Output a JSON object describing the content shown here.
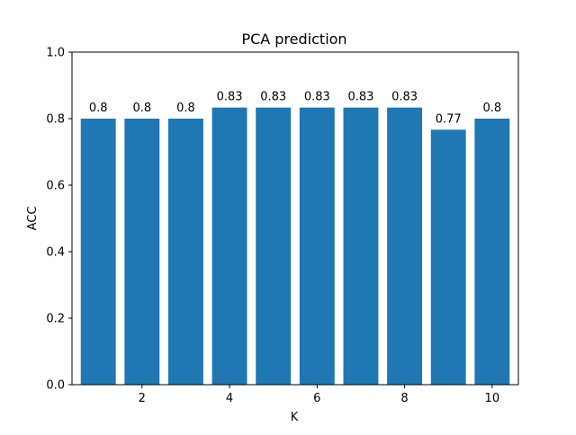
{
  "chart_data": {
    "type": "bar",
    "title": "PCA prediction",
    "xlabel": "K",
    "ylabel": "ACC",
    "x": [
      1,
      2,
      3,
      4,
      5,
      6,
      7,
      8,
      9,
      10
    ],
    "values": [
      0.8,
      0.8,
      0.8,
      0.8333,
      0.8333,
      0.8333,
      0.8333,
      0.8333,
      0.7667,
      0.8
    ],
    "data_labels": [
      "0.8",
      "0.8",
      "0.8",
      "0.83",
      "0.83",
      "0.83",
      "0.83",
      "0.83",
      "0.77",
      "0.8"
    ],
    "xlim": [
      0.4,
      10.6
    ],
    "ylim": [
      0,
      1.0
    ],
    "xticks": [
      2,
      4,
      6,
      8,
      10
    ],
    "xtick_labels": [
      "2",
      "4",
      "6",
      "8",
      "10"
    ],
    "yticks": [
      0.0,
      0.2,
      0.4,
      0.6,
      0.8,
      1.0
    ],
    "ytick_labels": [
      "0.0",
      "0.2",
      "0.4",
      "0.6",
      "0.8",
      "1.0"
    ],
    "bar_color": "#1f77b4",
    "grid": false,
    "legend": "none"
  }
}
